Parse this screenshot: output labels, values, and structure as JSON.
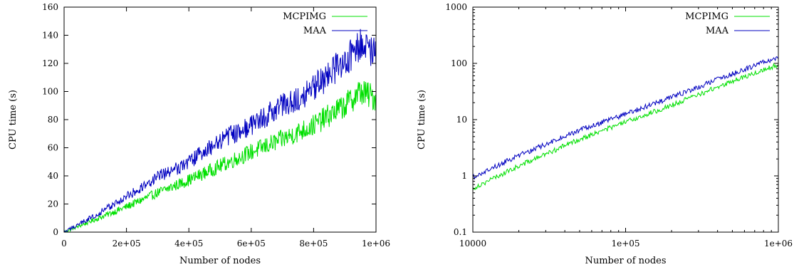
{
  "chart_data": [
    {
      "type": "line",
      "scale": "linear",
      "xlabel": "Number of nodes",
      "ylabel": "CPU time (s)",
      "xlim": [
        0,
        1000000
      ],
      "ylim": [
        0,
        160
      ],
      "x_ticks": [
        0,
        200000,
        400000,
        600000,
        800000,
        1000000
      ],
      "x_tick_labels": [
        "0",
        "2e+05",
        "4e+05",
        "6e+05",
        "8e+05",
        "1e+06"
      ],
      "y_ticks": [
        0,
        20,
        40,
        60,
        80,
        100,
        120,
        140,
        160
      ],
      "y_tick_labels": [
        "0",
        "20",
        "40",
        "60",
        "80",
        "100",
        "120",
        "140",
        "160"
      ],
      "legend_position": "top-right",
      "grid": false,
      "series": [
        {
          "name": "MCPIMG",
          "color": "#00e000",
          "x": [
            0,
            100000,
            200000,
            300000,
            400000,
            500000,
            600000,
            700000,
            800000,
            900000,
            950000,
            1000000
          ],
          "y": [
            0,
            9,
            18,
            28,
            37,
            47,
            57,
            66,
            76,
            90,
            100,
            95
          ]
        },
        {
          "name": "MAA",
          "color": "#0000c0",
          "x": [
            0,
            100000,
            200000,
            300000,
            400000,
            500000,
            600000,
            700000,
            800000,
            900000,
            950000,
            1000000
          ],
          "y": [
            0,
            12,
            25,
            39,
            50,
            65,
            76,
            90,
            102,
            122,
            135,
            125
          ]
        }
      ]
    },
    {
      "type": "line",
      "scale": "log-log",
      "xlabel": "Number of nodes",
      "ylabel": "CPU time (s)",
      "xlim": [
        10000,
        1000000
      ],
      "ylim": [
        0.1,
        1000
      ],
      "x_ticks": [
        10000,
        100000,
        1000000
      ],
      "x_tick_labels": [
        "10000",
        "1e+05",
        "1e+06"
      ],
      "y_ticks": [
        0.1,
        1,
        10,
        100,
        1000
      ],
      "y_tick_labels": [
        "0.1",
        "1",
        "10",
        "100",
        "1000"
      ],
      "legend_position": "top-right",
      "grid": false,
      "series": [
        {
          "name": "MCPIMG",
          "color": "#00e000",
          "x": [
            10000,
            20000,
            50000,
            100000,
            200000,
            500000,
            1000000
          ],
          "y": [
            0.6,
            1.5,
            4.5,
            9,
            18,
            48,
            95
          ]
        },
        {
          "name": "MAA",
          "color": "#0000c0",
          "x": [
            10000,
            20000,
            50000,
            100000,
            200000,
            500000,
            1000000
          ],
          "y": [
            0.95,
            2.3,
            6.5,
            12.5,
            25,
            65,
            130
          ]
        }
      ]
    }
  ]
}
